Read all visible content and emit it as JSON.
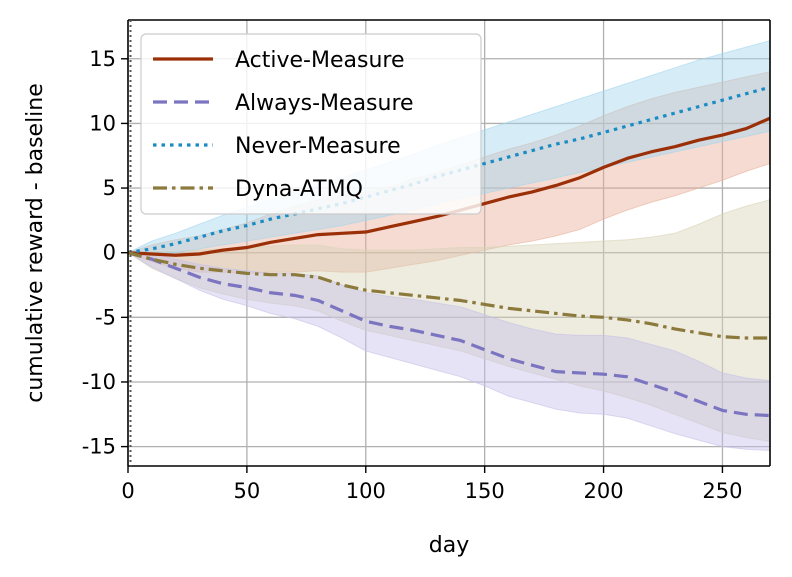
{
  "chart_data": {
    "type": "line",
    "title": "",
    "xlabel": "day",
    "ylabel": "cumulative reward - baseline",
    "xlim": [
      0,
      270
    ],
    "ylim": [
      -16.5,
      18
    ],
    "xticks": [
      0,
      50,
      100,
      150,
      200,
      250
    ],
    "yticks": [
      15,
      10,
      5,
      0,
      -5,
      -10,
      -15
    ],
    "xtick_labels": [
      "0",
      "50",
      "100",
      "150",
      "200",
      "250"
    ],
    "ytick_labels": [
      "15",
      "10",
      "5",
      "0",
      "-5",
      "-10",
      "-15"
    ],
    "grid": true,
    "legend_position": "top-left",
    "series": [
      {
        "name": "Active-Measure",
        "color": "#9b3008",
        "band_color": "#e8b09a",
        "dash": "solid",
        "x": [
          0,
          10,
          20,
          30,
          40,
          50,
          60,
          70,
          80,
          90,
          100,
          110,
          120,
          130,
          140,
          150,
          160,
          170,
          180,
          190,
          200,
          210,
          220,
          230,
          240,
          250,
          260,
          270
        ],
        "y": [
          0,
          -0.1,
          -0.2,
          -0.1,
          0.2,
          0.4,
          0.8,
          1.1,
          1.4,
          1.5,
          1.6,
          2.0,
          2.4,
          2.8,
          3.3,
          3.8,
          4.3,
          4.7,
          5.2,
          5.8,
          6.6,
          7.3,
          7.8,
          8.2,
          8.7,
          9.1,
          9.6,
          10.4
        ],
        "lower": [
          0,
          -0.7,
          -1.2,
          -1.5,
          -1.5,
          -1.6,
          -1.5,
          -1.5,
          -1.4,
          -1.5,
          -1.5,
          -1.2,
          -0.9,
          -0.6,
          -0.2,
          0.2,
          0.6,
          0.9,
          1.3,
          1.8,
          2.6,
          3.3,
          3.9,
          4.4,
          5.0,
          5.6,
          6.3,
          6.9
        ],
        "upper": [
          0,
          0.6,
          1.0,
          1.3,
          1.8,
          2.3,
          3.0,
          3.6,
          4.1,
          4.4,
          4.7,
          5.1,
          5.7,
          6.2,
          6.8,
          7.4,
          8.0,
          8.5,
          9.1,
          9.8,
          10.6,
          11.3,
          11.9,
          12.4,
          12.8,
          13.2,
          13.6,
          14.0
        ]
      },
      {
        "name": "Always-Measure",
        "color": "#7b74c0",
        "band_color": "#c6c2e8",
        "dash": "dashed",
        "x": [
          0,
          10,
          20,
          30,
          40,
          50,
          60,
          70,
          80,
          90,
          100,
          110,
          120,
          130,
          140,
          150,
          160,
          170,
          180,
          190,
          200,
          210,
          220,
          230,
          240,
          250,
          260,
          270
        ],
        "y": [
          0,
          -0.5,
          -1.2,
          -1.9,
          -2.4,
          -2.7,
          -3.1,
          -3.3,
          -3.7,
          -4.5,
          -5.3,
          -5.7,
          -6.0,
          -6.4,
          -6.8,
          -7.5,
          -8.2,
          -8.7,
          -9.2,
          -9.3,
          -9.4,
          -9.6,
          -10.2,
          -10.8,
          -11.5,
          -12.2,
          -12.5,
          -12.6
        ],
        "lower": [
          0,
          -1.1,
          -2.0,
          -2.9,
          -3.6,
          -4.1,
          -4.7,
          -5.1,
          -5.7,
          -6.6,
          -7.6,
          -8.1,
          -8.6,
          -9.1,
          -9.6,
          -10.3,
          -11.1,
          -11.6,
          -12.1,
          -12.4,
          -12.5,
          -12.8,
          -13.4,
          -14.0,
          -14.5,
          -15.0,
          -15.2,
          -15.3
        ],
        "upper": [
          0,
          0.0,
          -0.5,
          -0.9,
          -1.2,
          -1.4,
          -1.6,
          -1.6,
          -1.8,
          -2.5,
          -3.1,
          -3.4,
          -3.6,
          -3.9,
          -4.2,
          -4.8,
          -5.4,
          -5.9,
          -6.3,
          -6.4,
          -6.4,
          -6.6,
          -7.1,
          -7.6,
          -8.4,
          -9.3,
          -9.7,
          -9.9
        ]
      },
      {
        "name": "Never-Measure",
        "color": "#1a8cc4",
        "band_color": "#a4d6ef",
        "dash": "dotted",
        "x": [
          0,
          10,
          20,
          30,
          40,
          50,
          60,
          70,
          80,
          90,
          100,
          110,
          120,
          130,
          140,
          150,
          160,
          170,
          180,
          190,
          200,
          210,
          220,
          230,
          240,
          250,
          260,
          270
        ],
        "y": [
          0,
          0.3,
          0.7,
          1.2,
          1.7,
          2.1,
          2.6,
          3.0,
          3.4,
          3.8,
          4.3,
          4.8,
          5.3,
          5.9,
          6.4,
          6.9,
          7.4,
          7.9,
          8.4,
          8.8,
          9.3,
          9.8,
          10.3,
          10.8,
          11.3,
          11.8,
          12.3,
          12.8
        ],
        "lower": [
          0,
          -0.2,
          0.0,
          0.3,
          0.6,
          0.9,
          1.2,
          1.5,
          1.8,
          2.1,
          2.5,
          2.9,
          3.3,
          3.8,
          4.2,
          4.6,
          5.0,
          5.4,
          5.8,
          6.2,
          6.6,
          7.0,
          7.4,
          7.8,
          8.2,
          8.6,
          9.0,
          9.4
        ],
        "upper": [
          0,
          0.9,
          1.5,
          2.2,
          2.9,
          3.5,
          4.1,
          4.7,
          5.3,
          5.8,
          6.4,
          7.0,
          7.6,
          8.3,
          8.9,
          9.5,
          10.1,
          10.7,
          11.3,
          11.9,
          12.5,
          13.1,
          13.7,
          14.3,
          14.9,
          15.4,
          15.9,
          16.4
        ]
      },
      {
        "name": "Dyna-ATMQ",
        "color": "#8b7a3c",
        "band_color": "#d9d3b8",
        "dash": "dashdot",
        "x": [
          0,
          10,
          20,
          30,
          40,
          50,
          60,
          70,
          80,
          90,
          100,
          110,
          120,
          130,
          140,
          150,
          160,
          170,
          180,
          190,
          200,
          210,
          220,
          230,
          240,
          250,
          260,
          270
        ],
        "y": [
          0,
          -0.5,
          -0.9,
          -1.2,
          -1.4,
          -1.6,
          -1.7,
          -1.7,
          -1.9,
          -2.5,
          -2.9,
          -3.1,
          -3.3,
          -3.5,
          -3.7,
          -4.0,
          -4.3,
          -4.5,
          -4.7,
          -4.9,
          -5.0,
          -5.2,
          -5.5,
          -5.9,
          -6.2,
          -6.5,
          -6.6,
          -6.6
        ],
        "lower": [
          0,
          -1.2,
          -2.0,
          -2.7,
          -3.2,
          -3.6,
          -3.9,
          -4.1,
          -4.5,
          -5.3,
          -6.0,
          -6.4,
          -6.8,
          -7.2,
          -7.6,
          -8.2,
          -8.8,
          -9.3,
          -9.8,
          -10.3,
          -10.7,
          -11.2,
          -11.8,
          -12.5,
          -13.2,
          -13.9,
          -14.3,
          -14.6
        ],
        "upper": [
          0,
          0.1,
          0.1,
          0.2,
          0.3,
          0.4,
          0.5,
          0.6,
          0.6,
          0.3,
          0.2,
          0.2,
          0.2,
          0.3,
          0.4,
          0.4,
          0.5,
          0.6,
          0.7,
          0.8,
          0.9,
          1.0,
          1.2,
          1.5,
          2.2,
          3.0,
          3.6,
          4.1
        ]
      }
    ]
  }
}
